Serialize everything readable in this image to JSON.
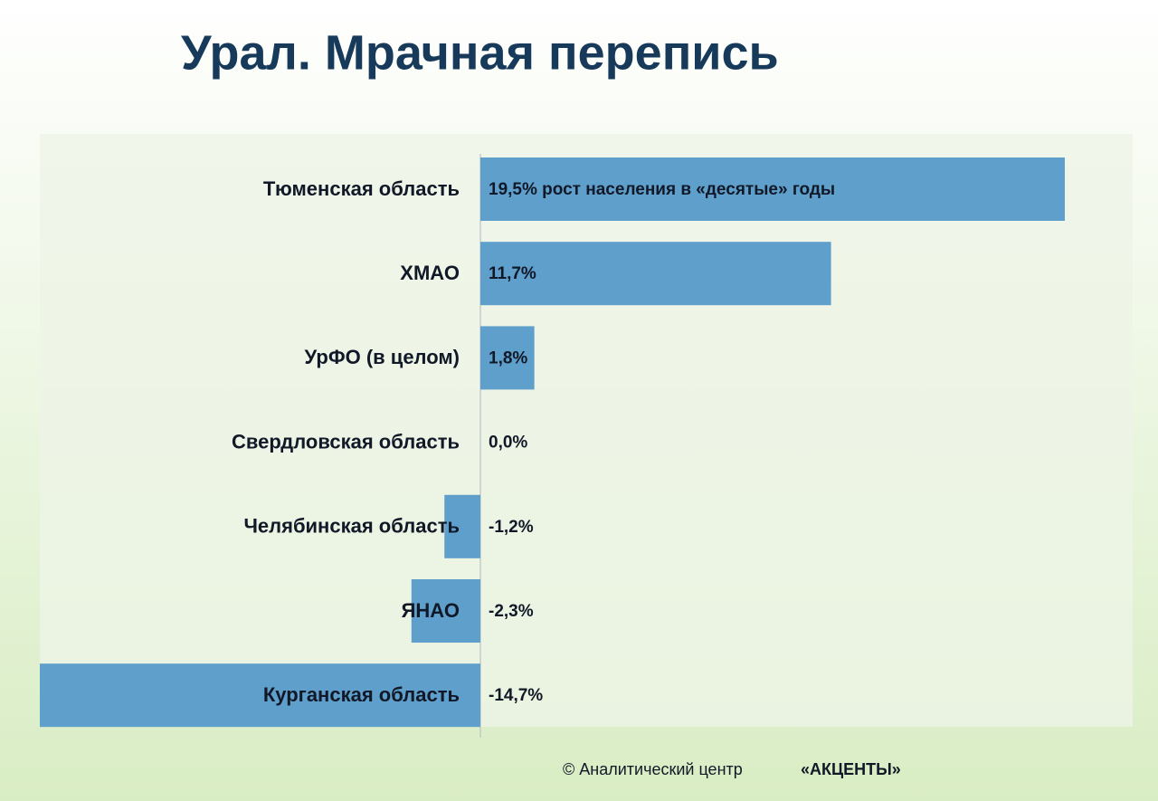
{
  "chart_data": {
    "type": "barh",
    "title": "Урал.  Мрачная  перепись",
    "categories": [
      "Тюменская область",
      "ХМАО",
      "УрФО (в целом)",
      "Свердловская область",
      "Челябинская область",
      "ЯНАО",
      "Курганская область"
    ],
    "values": [
      19.5,
      11.7,
      1.8,
      0.0,
      -1.2,
      -2.3,
      -14.7
    ],
    "value_labels": [
      "19,5% рост населения в «десятые» годы",
      "11,7%",
      "1,8%",
      "0,0%",
      "-1,2%",
      "-2,3%",
      "-14,7%"
    ],
    "color": "#5f9fcb",
    "source": "© Аналитический  центр",
    "source_emphasis": "«АКЦЕНТЫ»"
  }
}
